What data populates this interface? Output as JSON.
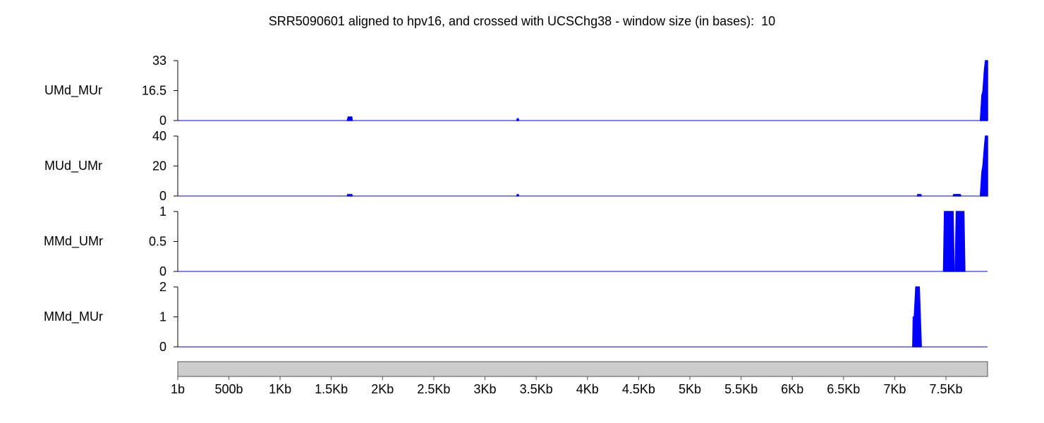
{
  "title": "SRR5090601 aligned to hpv16, and crossed with UCSChg38 - window size (in bases):  10",
  "colors": {
    "fill": "#0000ff",
    "axis": "#000000",
    "ruler": "#cccccc",
    "baseline": "#0000ff"
  },
  "chart_data": {
    "type": "area",
    "x_ticks": [
      "1b",
      "500b",
      "1Kb",
      "1.5Kb",
      "2Kb",
      "2.5Kb",
      "3Kb",
      "3.5Kb",
      "4Kb",
      "4.5Kb",
      "5Kb",
      "5.5Kb",
      "6Kb",
      "6.5Kb",
      "7Kb",
      "7.5Kb"
    ],
    "x_tick_values": [
      1,
      500,
      1000,
      1500,
      2000,
      2500,
      3000,
      3500,
      4000,
      4500,
      5000,
      5500,
      6000,
      6500,
      7000,
      7500
    ],
    "xlim": [
      1,
      7906
    ],
    "tracks": [
      {
        "name": "UMd_MUr",
        "ylim": [
          0,
          33
        ],
        "y_ticks": [
          "33",
          "16.5",
          "0"
        ],
        "y_tick_values": [
          33,
          16.5,
          0
        ],
        "points": [
          [
            1655,
            0
          ],
          [
            1660,
            1
          ],
          [
            1665,
            2
          ],
          [
            1675,
            2
          ],
          [
            1680,
            1
          ],
          [
            1685,
            2
          ],
          [
            1700,
            2
          ],
          [
            1705,
            0
          ],
          [
            3310,
            0
          ],
          [
            3315,
            1
          ],
          [
            3325,
            1
          ],
          [
            3330,
            0
          ],
          [
            7835,
            0
          ],
          [
            7850,
            14
          ],
          [
            7860,
            16
          ],
          [
            7875,
            28
          ],
          [
            7885,
            33
          ],
          [
            7906,
            33
          ]
        ]
      },
      {
        "name": "MUd_UMr",
        "ylim": [
          0,
          40
        ],
        "y_ticks": [
          "40",
          "20",
          "0"
        ],
        "y_tick_values": [
          40,
          20,
          0
        ],
        "points": [
          [
            1655,
            0
          ],
          [
            1660,
            1
          ],
          [
            1700,
            1
          ],
          [
            1705,
            0
          ],
          [
            3310,
            0
          ],
          [
            3315,
            1
          ],
          [
            3325,
            1
          ],
          [
            3330,
            0
          ],
          [
            7220,
            0
          ],
          [
            7225,
            1
          ],
          [
            7255,
            1
          ],
          [
            7260,
            0
          ],
          [
            7570,
            0
          ],
          [
            7575,
            1
          ],
          [
            7640,
            1
          ],
          [
            7645,
            0
          ],
          [
            7835,
            0
          ],
          [
            7850,
            16
          ],
          [
            7860,
            20
          ],
          [
            7875,
            33
          ],
          [
            7885,
            40
          ],
          [
            7906,
            40
          ]
        ]
      },
      {
        "name": "MMd_UMr",
        "ylim": [
          0,
          1
        ],
        "y_ticks": [
          "1",
          "0.5",
          "0"
        ],
        "y_tick_values": [
          1,
          0.5,
          0
        ],
        "points": [
          [
            7475,
            0
          ],
          [
            7485,
            1
          ],
          [
            7570,
            1
          ],
          [
            7580,
            0
          ],
          [
            7590,
            0
          ],
          [
            7600,
            1
          ],
          [
            7675,
            1
          ],
          [
            7685,
            0
          ]
        ]
      },
      {
        "name": "MMd_MUr",
        "ylim": [
          0,
          2
        ],
        "y_ticks": [
          "2",
          "1",
          "0"
        ],
        "y_tick_values": [
          2,
          1,
          0
        ],
        "points": [
          [
            7175,
            0
          ],
          [
            7180,
            1
          ],
          [
            7190,
            1
          ],
          [
            7205,
            2
          ],
          [
            7240,
            2
          ],
          [
            7260,
            0
          ]
        ]
      }
    ]
  }
}
